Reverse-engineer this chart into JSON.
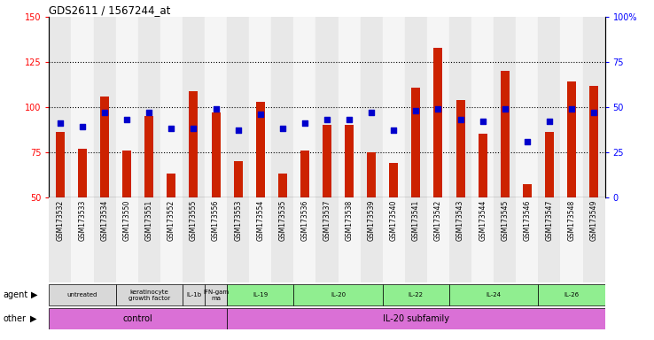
{
  "title": "GDS2611 / 1567244_at",
  "samples": [
    "GSM173532",
    "GSM173533",
    "GSM173534",
    "GSM173550",
    "GSM173551",
    "GSM173552",
    "GSM173555",
    "GSM173556",
    "GSM173553",
    "GSM173554",
    "GSM173535",
    "GSM173536",
    "GSM173537",
    "GSM173538",
    "GSM173539",
    "GSM173540",
    "GSM173541",
    "GSM173542",
    "GSM173543",
    "GSM173544",
    "GSM173545",
    "GSM173546",
    "GSM173547",
    "GSM173548",
    "GSM173549"
  ],
  "counts": [
    86,
    77,
    106,
    76,
    95,
    63,
    109,
    97,
    70,
    103,
    63,
    76,
    90,
    90,
    75,
    69,
    111,
    133,
    104,
    85,
    120,
    57,
    86,
    114,
    112
  ],
  "percentiles": [
    91,
    89,
    97,
    93,
    97,
    88,
    88,
    99,
    87,
    96,
    88,
    91,
    93,
    93,
    97,
    87,
    98,
    99,
    93,
    92,
    99,
    81,
    92,
    99,
    97
  ],
  "bar_color": "#cc2200",
  "dot_color": "#0000cc",
  "ylim_left": [
    50,
    150
  ],
  "ylim_right": [
    0,
    100
  ],
  "yticks_left": [
    50,
    75,
    100,
    125,
    150
  ],
  "yticks_right": [
    0,
    25,
    50,
    75,
    100
  ],
  "ytick_labels_right": [
    "0",
    "25",
    "50",
    "75",
    "100%"
  ],
  "grid_vals": [
    75,
    100,
    125
  ],
  "agent_groups": [
    {
      "label": "untreated",
      "start": 0,
      "end": 2,
      "color": "#d8d8d8"
    },
    {
      "label": "keratinocyte\ngrowth factor",
      "start": 3,
      "end": 5,
      "color": "#d8d8d8"
    },
    {
      "label": "IL-1b",
      "start": 6,
      "end": 6,
      "color": "#d8d8d8"
    },
    {
      "label": "IFN-gam\nma",
      "start": 7,
      "end": 7,
      "color": "#d8d8d8"
    },
    {
      "label": "IL-19",
      "start": 8,
      "end": 10,
      "color": "#90ee90"
    },
    {
      "label": "IL-20",
      "start": 11,
      "end": 14,
      "color": "#90ee90"
    },
    {
      "label": "IL-22",
      "start": 15,
      "end": 17,
      "color": "#90ee90"
    },
    {
      "label": "IL-24",
      "start": 18,
      "end": 21,
      "color": "#90ee90"
    },
    {
      "label": "IL-26",
      "start": 22,
      "end": 24,
      "color": "#90ee90"
    }
  ],
  "other_groups": [
    {
      "label": "control",
      "start": 0,
      "end": 7,
      "color": "#da70d6"
    },
    {
      "label": "IL-20 subfamily",
      "start": 8,
      "end": 24,
      "color": "#da70d6"
    }
  ]
}
